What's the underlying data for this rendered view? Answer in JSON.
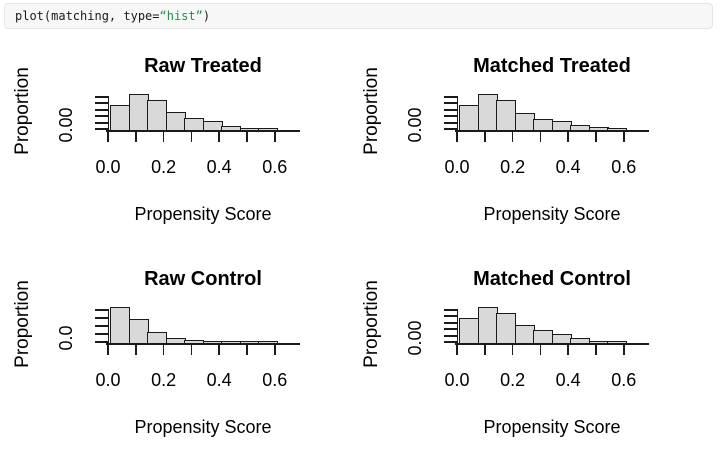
{
  "code": {
    "prefix": "plot(matching, type=",
    "string": "“hist”",
    "suffix": ")"
  },
  "colors": {
    "bar_fill": "#d9d9d9",
    "bar_border": "#1b1b1b",
    "code_string_green": "#2e8b57",
    "code_background": "#f7f7f7",
    "text": "#000000",
    "page_background": "#ffffff"
  },
  "chart_data": {
    "type": "bar",
    "layout": "2x2 grid of R-style histograms (propensity score balance plot), legend: none, grid: off",
    "x_axis": {
      "ticks": [
        0.0,
        0.1,
        0.2,
        0.3,
        0.4,
        0.5,
        0.6
      ],
      "labeled_ticks": [
        "0.0",
        "0.2",
        "0.4",
        "0.6"
      ],
      "range": [
        0,
        0.68
      ]
    },
    "bins": {
      "start": 0.01,
      "width": 0.067,
      "note": "9 equal-width bins per panel; y axis shows only its lowest tick label, so bar heights are relative to the tallest bar of each panel"
    },
    "panels": [
      {
        "title": "Raw Treated",
        "xlabel": "Propensity Score",
        "ylabel": "Proportion",
        "y_tick_label": "0.00",
        "n_y_ticks": 6,
        "relative_heights": [
          0.69,
          1.0,
          0.85,
          0.49,
          0.34,
          0.25,
          0.11,
          0.05,
          0.02
        ]
      },
      {
        "title": "Matched Treated",
        "xlabel": "Propensity Score",
        "ylabel": "Proportion",
        "y_tick_label": "0.00",
        "n_y_ticks": 6,
        "relative_heights": [
          0.69,
          1.0,
          0.84,
          0.46,
          0.31,
          0.23,
          0.12,
          0.08,
          0.03
        ]
      },
      {
        "title": "Raw Control",
        "xlabel": "Propensity Score",
        "ylabel": "Proportion",
        "y_tick_label": "0.0",
        "n_y_ticks": 5,
        "relative_heights": [
          1.0,
          0.66,
          0.31,
          0.13,
          0.06,
          0.04,
          0.04,
          0.03,
          0.02
        ]
      },
      {
        "title": "Matched Control",
        "xlabel": "Propensity Score",
        "ylabel": "Proportion",
        "y_tick_label": "0.00",
        "n_y_ticks": 6,
        "relative_heights": [
          0.71,
          1.0,
          0.83,
          0.49,
          0.36,
          0.23,
          0.12,
          0.05,
          0.03
        ]
      }
    ]
  }
}
